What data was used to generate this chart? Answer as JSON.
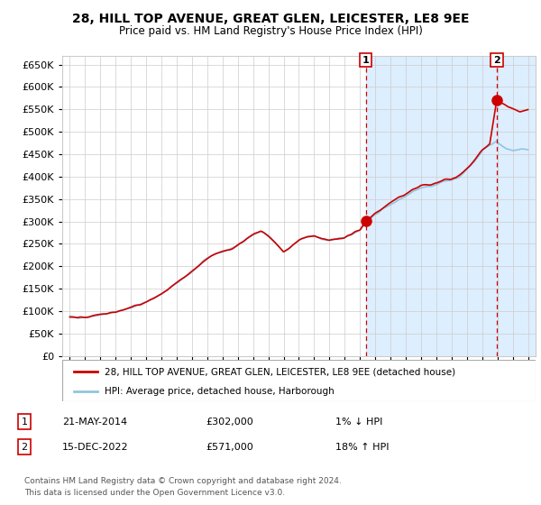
{
  "title": "28, HILL TOP AVENUE, GREAT GLEN, LEICESTER, LE8 9EE",
  "subtitle": "Price paid vs. HM Land Registry's House Price Index (HPI)",
  "legend_line1": "28, HILL TOP AVENUE, GREAT GLEN, LEICESTER, LE8 9EE (detached house)",
  "legend_line2": "HPI: Average price, detached house, Harborough",
  "annotation1_date": "21-MAY-2014",
  "annotation1_price": "£302,000",
  "annotation1_note": "1% ↓ HPI",
  "annotation2_date": "15-DEC-2022",
  "annotation2_price": "£571,000",
  "annotation2_note": "18% ↑ HPI",
  "footer": "Contains HM Land Registry data © Crown copyright and database right 2024.\nThis data is licensed under the Open Government Licence v3.0.",
  "hpi_color": "#92c5de",
  "price_color": "#cc0000",
  "dot_color": "#cc0000",
  "vline_color": "#cc0000",
  "span_color": "#ddeeff",
  "ylim": [
    0,
    670000
  ],
  "yticks": [
    0,
    50000,
    100000,
    150000,
    200000,
    250000,
    300000,
    350000,
    400000,
    450000,
    500000,
    550000,
    600000,
    650000
  ],
  "purchase1_year": 2014.38,
  "purchase1_value": 302000,
  "purchase2_year": 2022.96,
  "purchase2_value": 571000,
  "xmin": 1995,
  "xmax": 2025
}
